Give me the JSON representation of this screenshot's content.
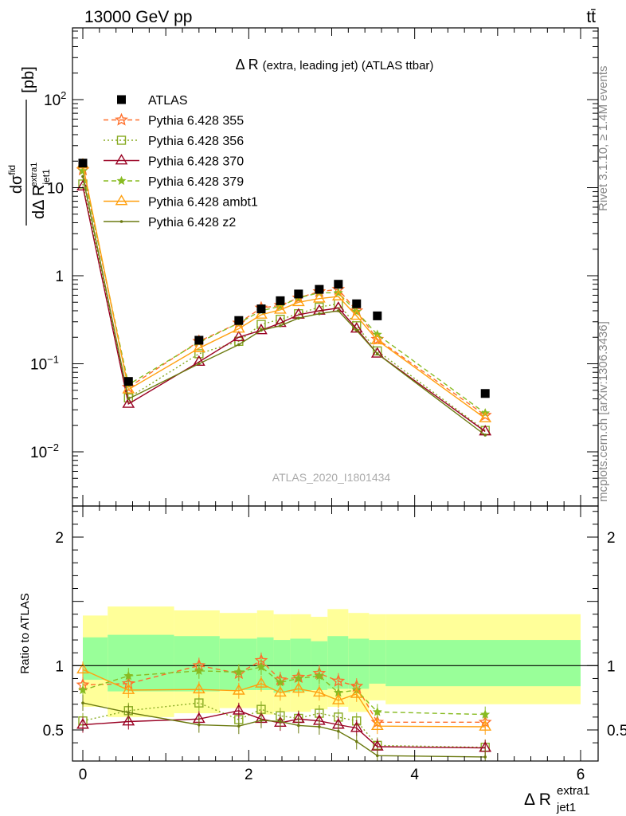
{
  "header": {
    "left": "13000 GeV pp",
    "right": "tt̄"
  },
  "side_text": {
    "rivet": "Rivet 3.1.10, ≥ 1.4M events",
    "mcplots": "mcplots.cern.ch [arXiv:1306.3436]"
  },
  "watermark": "ATLAS_2020_I1801434",
  "chart_data": [
    {
      "type": "line",
      "title": "Δ R (extra, leading jet) (ATLAS ttbar)",
      "ylabel": "dσ^fid / dΔ R_{jet1}^{extra1} [pb]",
      "ylabel_parts": {
        "num_d": "d",
        "num_sigma": "dσ",
        "num_sup": "fid",
        "den": "dΔ R",
        "den_sub": "jet1",
        "den_sup": "extra1",
        "unit": "[pb]"
      },
      "xlabel": "Δ R_{jet1}^{extra1}",
      "xlabel_parts": {
        "main": "Δ R",
        "sub": "jet1",
        "sup": "extra1"
      },
      "y_scale": "log",
      "xlim": [
        -0.1,
        6.2
      ],
      "ylim": [
        0.0025,
        900
      ],
      "y_ticks": [
        {
          "v": 0.01,
          "base": "10",
          "exp": "−2"
        },
        {
          "v": 0.1,
          "base": "10",
          "exp": "−1"
        },
        {
          "v": 1,
          "base": "1",
          "exp": ""
        },
        {
          "v": 10,
          "base": "10",
          "exp": ""
        },
        {
          "v": 100,
          "base": "10",
          "exp": "2"
        }
      ],
      "x_ticks": [
        0,
        2,
        4,
        6
      ],
      "x_tick_labels": [
        "0",
        "2",
        "4",
        "6"
      ],
      "legend_position": "top-left",
      "data": {
        "name": "ATLAS",
        "color": "#000000",
        "x": [
          0.0,
          0.55,
          1.4,
          1.88,
          2.15,
          2.38,
          2.6,
          2.85,
          3.08,
          3.3,
          3.55,
          4.85
        ],
        "y": [
          19.0,
          0.063,
          0.185,
          0.31,
          0.42,
          0.52,
          0.62,
          0.7,
          0.8,
          0.48,
          0.35,
          0.046
        ]
      },
      "series": [
        {
          "name": "Pythia 6.428 355",
          "color": "#ff6f2a",
          "marker": "star-open",
          "dash": "6,4",
          "x": [
            0.0,
            0.55,
            1.4,
            1.88,
            2.15,
            2.38,
            2.6,
            2.85,
            3.08,
            3.3,
            3.55,
            4.85
          ],
          "y": [
            16.0,
            0.054,
            0.18,
            0.29,
            0.43,
            0.46,
            0.56,
            0.66,
            0.7,
            0.4,
            0.19,
            0.026
          ]
        },
        {
          "name": "Pythia 6.428 356",
          "color": "#88aa22",
          "marker": "square-open",
          "dash": "2,3",
          "x": [
            0.0,
            0.55,
            1.4,
            1.88,
            2.15,
            2.38,
            2.6,
            2.85,
            3.08,
            3.3,
            3.55,
            4.85
          ],
          "y": [
            11.0,
            0.041,
            0.13,
            0.18,
            0.28,
            0.32,
            0.37,
            0.44,
            0.48,
            0.27,
            0.14,
            0.0175
          ]
        },
        {
          "name": "Pythia 6.428 370",
          "color": "#990022",
          "marker": "triangle-open",
          "dash": "",
          "x": [
            0.0,
            0.55,
            1.4,
            1.88,
            2.15,
            2.38,
            2.6,
            2.85,
            3.08,
            3.3,
            3.55,
            4.85
          ],
          "y": [
            10.3,
            0.035,
            0.105,
            0.2,
            0.24,
            0.29,
            0.36,
            0.4,
            0.43,
            0.25,
            0.13,
            0.017
          ]
        },
        {
          "name": "Pythia 6.428 379",
          "color": "#88bb22",
          "marker": "star-filled",
          "dash": "6,4",
          "x": [
            0.0,
            0.55,
            1.4,
            1.88,
            2.15,
            2.38,
            2.6,
            2.85,
            3.08,
            3.3,
            3.55,
            4.85
          ],
          "y": [
            15.5,
            0.058,
            0.175,
            0.29,
            0.4,
            0.45,
            0.56,
            0.64,
            0.64,
            0.39,
            0.215,
            0.0275
          ]
        },
        {
          "name": "Pythia 6.428 ambt1",
          "color": "#ffa010",
          "marker": "triangle-open",
          "dash": "",
          "x": [
            0.0,
            0.55,
            1.4,
            1.88,
            2.15,
            2.38,
            2.6,
            2.85,
            3.08,
            3.3,
            3.55,
            4.85
          ],
          "y": [
            18.3,
            0.051,
            0.15,
            0.25,
            0.36,
            0.41,
            0.5,
            0.55,
            0.58,
            0.35,
            0.185,
            0.024
          ]
        },
        {
          "name": "Pythia 6.428 z2",
          "color": "#6b7a10",
          "marker": "dot",
          "dash": "",
          "x": [
            0.0,
            0.55,
            1.4,
            1.88,
            2.15,
            2.38,
            2.6,
            2.85,
            3.08,
            3.3,
            3.55,
            4.85
          ],
          "y": [
            13.4,
            0.04,
            0.1,
            0.165,
            0.24,
            0.27,
            0.33,
            0.37,
            0.4,
            0.24,
            0.13,
            0.0155
          ]
        }
      ]
    },
    {
      "type": "line",
      "ylabel": "Ratio to ATLAS",
      "xlabel": "",
      "ylim": [
        0.34,
        2.3
      ],
      "y_ticks": [
        0.5,
        1,
        2
      ],
      "y_tick_labels": [
        "0.5",
        "1",
        "2"
      ],
      "x_ticks": [
        0,
        2,
        4,
        6
      ],
      "x_tick_labels": [
        "0",
        "2",
        "4",
        "6"
      ],
      "reference_line": 1,
      "bands": {
        "edges": [
          0.0,
          0.3,
          1.1,
          1.65,
          2.1,
          2.3,
          2.5,
          2.75,
          2.95,
          3.2,
          3.45,
          3.65,
          6.0
        ],
        "outer_color": "#ffff99",
        "inner_color": "#99ff99",
        "outer_lo": [
          0.68,
          0.6,
          0.63,
          0.67,
          0.62,
          0.64,
          0.64,
          0.66,
          0.68,
          0.64,
          0.73,
          0.7
        ],
        "outer_hi": [
          1.39,
          1.46,
          1.43,
          1.41,
          1.43,
          1.4,
          1.4,
          1.38,
          1.44,
          1.41,
          1.4,
          1.4
        ],
        "inner_lo": [
          0.89,
          0.8,
          0.8,
          0.81,
          0.81,
          0.79,
          0.8,
          0.81,
          0.82,
          0.82,
          0.86,
          0.84
        ],
        "inner_hi": [
          1.22,
          1.24,
          1.23,
          1.21,
          1.22,
          1.2,
          1.21,
          1.19,
          1.23,
          1.21,
          1.2,
          1.2
        ]
      },
      "series": [
        {
          "name": "Pythia 6.428 355",
          "color": "#ff6f2a",
          "marker": "star-open",
          "dash": "6,4",
          "x": [
            0.0,
            0.55,
            1.4,
            1.88,
            2.15,
            2.38,
            2.6,
            2.85,
            3.08,
            3.3,
            3.55,
            4.85
          ],
          "y": [
            0.85,
            0.86,
            1.0,
            0.94,
            1.04,
            0.89,
            0.91,
            0.94,
            0.88,
            0.84,
            0.56,
            0.56
          ]
        },
        {
          "name": "Pythia 6.428 356",
          "color": "#88aa22",
          "marker": "square-open",
          "dash": "2,3",
          "x": [
            0.0,
            0.55,
            1.4,
            1.88,
            2.15,
            2.38,
            2.6,
            2.85,
            3.08,
            3.3,
            3.55,
            4.85
          ],
          "y": [
            0.57,
            0.65,
            0.71,
            0.58,
            0.66,
            0.61,
            0.59,
            0.63,
            0.6,
            0.57,
            0.38,
            0.365
          ]
        },
        {
          "name": "Pythia 6.428 370",
          "color": "#990022",
          "marker": "triangle-open",
          "dash": "",
          "x": [
            0.0,
            0.55,
            1.4,
            1.88,
            2.15,
            2.38,
            2.6,
            2.85,
            3.08,
            3.3,
            3.55,
            4.85
          ],
          "y": [
            0.54,
            0.565,
            0.585,
            0.65,
            0.585,
            0.555,
            0.585,
            0.57,
            0.54,
            0.515,
            0.37,
            0.36
          ]
        },
        {
          "name": "Pythia 6.428 379",
          "color": "#88bb22",
          "marker": "star-filled",
          "dash": "6,4",
          "x": [
            0.0,
            0.55,
            1.4,
            1.88,
            2.15,
            2.38,
            2.6,
            2.85,
            3.08,
            3.3,
            3.55,
            4.85
          ],
          "y": [
            0.81,
            0.92,
            0.96,
            0.95,
            0.99,
            0.87,
            0.9,
            0.92,
            0.79,
            0.81,
            0.64,
            0.62
          ]
        },
        {
          "name": "Pythia 6.428 ambt1",
          "color": "#ffa010",
          "marker": "triangle-open",
          "dash": "",
          "x": [
            0.0,
            0.55,
            1.4,
            1.88,
            2.15,
            2.38,
            2.6,
            2.85,
            3.08,
            3.3,
            3.55,
            4.85
          ],
          "y": [
            0.97,
            0.81,
            0.815,
            0.805,
            0.86,
            0.79,
            0.82,
            0.79,
            0.73,
            0.78,
            0.53,
            0.525
          ]
        },
        {
          "name": "Pythia 6.428 z2",
          "color": "#6b7a10",
          "marker": "dot",
          "dash": "",
          "x": [
            0.0,
            0.55,
            1.4,
            1.88,
            2.15,
            2.38,
            2.6,
            2.85,
            3.08,
            3.3,
            3.55,
            4.85
          ],
          "y": [
            0.71,
            0.635,
            0.54,
            0.53,
            0.575,
            0.565,
            0.535,
            0.525,
            0.49,
            0.41,
            0.3,
            0.29
          ]
        }
      ]
    }
  ]
}
